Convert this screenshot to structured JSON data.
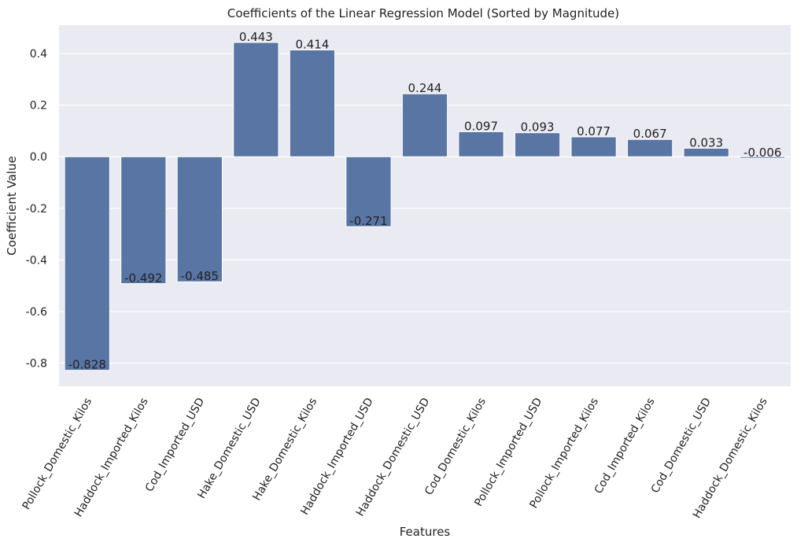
{
  "chart_data": {
    "type": "bar",
    "title": "Coefficients of the Linear Regression Model (Sorted by Magnitude)",
    "xlabel": "Features",
    "ylabel": "Coefficient Value",
    "categories": [
      "Pollock_Domestic_Kilos",
      "Haddock_Imported_Kilos",
      "Cod_Imported_USD",
      "Hake_Domestic_USD",
      "Hake_Domestic_Kilos",
      "Haddock_Imported_USD",
      "Haddock_Domestic_USD",
      "Cod_Domestic_Kilos",
      "Pollock_Imported_USD",
      "Pollock_Imported_Kilos",
      "Cod_Imported_Kilos",
      "Cod_Domestic_USD",
      "Haddock_Domestic_Kilos"
    ],
    "values": [
      -0.828,
      -0.492,
      -0.485,
      0.443,
      0.414,
      -0.271,
      0.244,
      0.097,
      0.093,
      0.077,
      0.067,
      0.033,
      -0.006
    ],
    "value_labels": [
      "-0.828",
      "-0.492",
      "-0.485",
      "0.443",
      "0.414",
      "-0.271",
      "0.244",
      "0.097",
      "0.093",
      "0.077",
      "0.067",
      "0.033",
      "-0.006"
    ],
    "ylim": [
      -0.89,
      0.51
    ],
    "yticks": [
      -0.8,
      -0.6,
      -0.4,
      -0.2,
      0.0,
      0.2,
      0.4
    ],
    "ytick_labels": [
      "-0.8",
      "-0.6",
      "-0.4",
      "-0.2",
      "0.0",
      "0.2",
      "0.4"
    ],
    "grid": true,
    "bar_color": "#5975a4",
    "background_color": "#eaeaf2",
    "grid_color": "#ffffff"
  }
}
